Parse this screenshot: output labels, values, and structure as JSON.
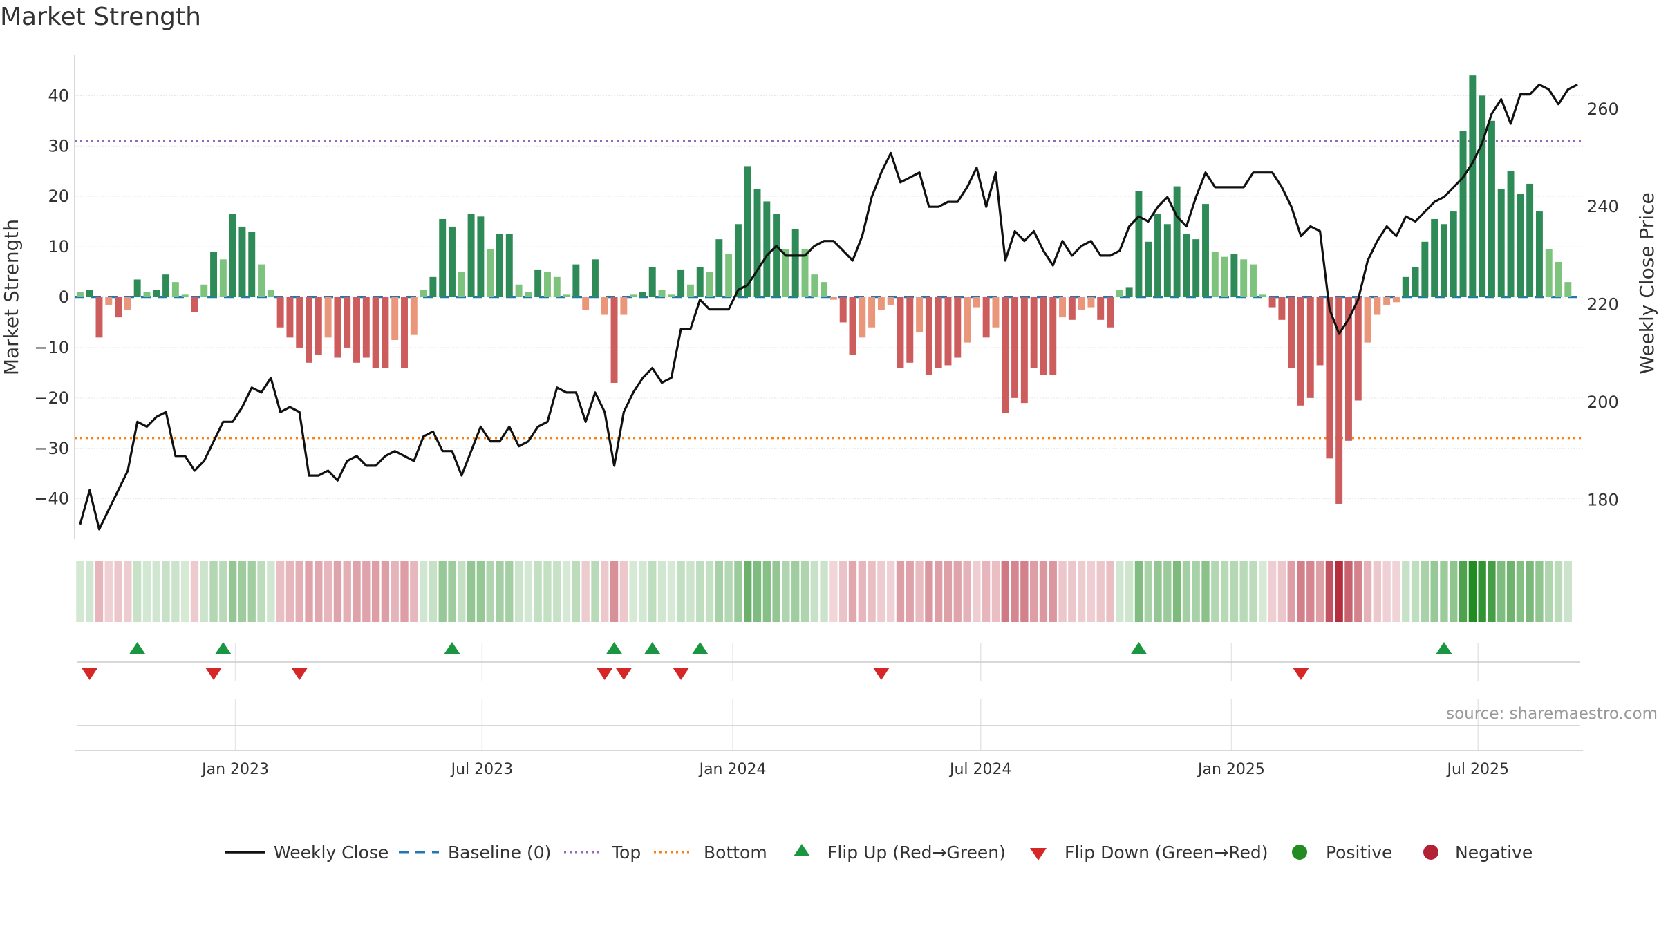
{
  "title": "Market Strength",
  "source": "source: sharemaestro.com",
  "colors": {
    "strong_green": "#2e8b57",
    "light_green": "#7dc27d",
    "strong_red": "#cd5c5c",
    "light_red": "#e9967a",
    "close_line": "#111111",
    "baseline": "#1f77b4",
    "top_line": "#9467bd",
    "bottom_line": "#ff7f0e",
    "flip_up": "#1a9641",
    "flip_down": "#d62728",
    "positive": "#228b22",
    "negative": "#b22234"
  },
  "chart_data": {
    "type": "bar",
    "title": "Market Strength",
    "ylabel": "Market Strength",
    "y2label": "Weekly Close Price",
    "ylim": [
      -48,
      48
    ],
    "y2lim": [
      172,
      271
    ],
    "yticks": [
      -40,
      -30,
      -20,
      -10,
      0,
      10,
      20,
      30,
      40
    ],
    "y2ticks": [
      180,
      200,
      220,
      240,
      260
    ],
    "x_start": "2022-09-09",
    "x_end": "2025-09-12",
    "xticks": [
      {
        "date": "2023-01-01",
        "label": "Jan 2023"
      },
      {
        "date": "2023-07-01",
        "label": "Jul 2023"
      },
      {
        "date": "2024-01-01",
        "label": "Jan 2024"
      },
      {
        "date": "2024-07-01",
        "label": "Jul 2024"
      },
      {
        "date": "2025-01-01",
        "label": "Jan 2025"
      },
      {
        "date": "2025-07-01",
        "label": "Jul 2025"
      }
    ],
    "top_line": 31,
    "bottom_line": -28,
    "baseline": 0,
    "weekly_dates": [
      "2022-09-09",
      "2022-09-16",
      "2022-09-23",
      "2022-09-30",
      "2022-10-07",
      "2022-10-14",
      "2022-10-21",
      "2022-10-28",
      "2022-11-04",
      "2022-11-11",
      "2022-11-18",
      "2022-11-25",
      "2022-12-02",
      "2022-12-09",
      "2022-12-16",
      "2022-12-23",
      "2022-12-30",
      "2023-01-06",
      "2023-01-13",
      "2023-01-20",
      "2023-01-27",
      "2023-02-03",
      "2023-02-10",
      "2023-02-17",
      "2023-02-24",
      "2023-03-03",
      "2023-03-10",
      "2023-03-17",
      "2023-03-24",
      "2023-03-31",
      "2023-04-07",
      "2023-04-14",
      "2023-04-21",
      "2023-04-28",
      "2023-05-05",
      "2023-05-12",
      "2023-05-19",
      "2023-05-26",
      "2023-06-02",
      "2023-06-09",
      "2023-06-16",
      "2023-06-23",
      "2023-06-30",
      "2023-07-07",
      "2023-07-14",
      "2023-07-21",
      "2023-07-28",
      "2023-08-04",
      "2023-08-11",
      "2023-08-18",
      "2023-08-25",
      "2023-09-01",
      "2023-09-08",
      "2023-09-15",
      "2023-09-22",
      "2023-09-29",
      "2023-10-06",
      "2023-10-13",
      "2023-10-20",
      "2023-10-27",
      "2023-11-03",
      "2023-11-10",
      "2023-11-17",
      "2023-11-24",
      "2023-12-01",
      "2023-12-08",
      "2023-12-15",
      "2023-12-22",
      "2023-12-29",
      "2024-01-05",
      "2024-01-12",
      "2024-01-19",
      "2024-01-26",
      "2024-02-02",
      "2024-02-09",
      "2024-02-16",
      "2024-02-23",
      "2024-03-01",
      "2024-03-08",
      "2024-03-15",
      "2024-03-22",
      "2024-03-29",
      "2024-04-05",
      "2024-04-12",
      "2024-04-19",
      "2024-04-26",
      "2024-05-03",
      "2024-05-10",
      "2024-05-17",
      "2024-05-24",
      "2024-05-31",
      "2024-06-07",
      "2024-06-14",
      "2024-06-21",
      "2024-06-28",
      "2024-07-05",
      "2024-07-12",
      "2024-07-19",
      "2024-07-26",
      "2024-08-02",
      "2024-08-09",
      "2024-08-16",
      "2024-08-23",
      "2024-08-30",
      "2024-09-06",
      "2024-09-13",
      "2024-09-20",
      "2024-09-27",
      "2024-10-04",
      "2024-10-11",
      "2024-10-18",
      "2024-10-25",
      "2024-11-01",
      "2024-11-08",
      "2024-11-15",
      "2024-11-22",
      "2024-11-29",
      "2024-12-06",
      "2024-12-13",
      "2024-12-20",
      "2024-12-27",
      "2025-01-03",
      "2025-01-10",
      "2025-01-17",
      "2025-01-24",
      "2025-01-31",
      "2025-02-07",
      "2025-02-14",
      "2025-02-21",
      "2025-02-28",
      "2025-03-07",
      "2025-03-14",
      "2025-03-21",
      "2025-03-28",
      "2025-04-04",
      "2025-04-11",
      "2025-04-18",
      "2025-04-25",
      "2025-05-02",
      "2025-05-09",
      "2025-05-16",
      "2025-05-23",
      "2025-05-30",
      "2025-06-06",
      "2025-06-13",
      "2025-06-20",
      "2025-06-27",
      "2025-07-04",
      "2025-07-11",
      "2025-07-18",
      "2025-07-25",
      "2025-08-01",
      "2025-08-08",
      "2025-08-15",
      "2025-08-22",
      "2025-08-29",
      "2025-09-05",
      "2025-09-12"
    ],
    "series": [
      {
        "name": "Market Strength",
        "values": [
          1,
          1.5,
          -8,
          -1.5,
          -4,
          -2.5,
          3.5,
          1,
          1.5,
          4.5,
          3,
          0.5,
          -3,
          2.5,
          9,
          7.5,
          16.5,
          14,
          13,
          6.5,
          1.5,
          -6,
          -8,
          -10,
          -13,
          -11.5,
          -8,
          -12,
          -10,
          -13,
          -12,
          -14,
          -14,
          -8.5,
          -14,
          -7.5,
          1.5,
          4,
          15.5,
          14,
          5,
          16.5,
          16,
          9.5,
          12.5,
          12.5,
          2.5,
          1,
          5.5,
          5,
          4,
          0.5,
          6.5,
          -2.5,
          7.5,
          -3.5,
          -17,
          -3.5,
          0.5,
          1,
          6,
          1.5,
          0.5,
          5.5,
          2.5,
          6,
          5,
          11.5,
          8.5,
          14.5,
          26,
          21.5,
          19,
          16.5,
          9.5,
          13.5,
          9.5,
          4.5,
          3,
          -0.5,
          -5,
          -11.5,
          -8,
          -6,
          -2.5,
          -1.5,
          -14,
          -13,
          -7,
          -15.5,
          -14,
          -13.5,
          -12,
          -9,
          -2,
          -8,
          -6,
          -23,
          -20,
          -21,
          -14,
          -15.5,
          -15.5,
          -4,
          -4.5,
          -2.5,
          -2,
          -4.5,
          -6,
          1.5,
          2,
          21,
          11,
          16.5,
          14.5,
          22,
          12.5,
          11.5,
          18.5,
          9,
          8,
          8.5,
          7.5,
          6.5,
          0.5,
          -2,
          -4.5,
          -14,
          -21.5,
          -20,
          -13.5,
          -32,
          -41,
          -28.5,
          -20.5,
          -9,
          -3.5,
          -1.5,
          -1,
          4,
          6,
          11,
          15.5,
          14.5,
          17,
          33,
          44,
          40,
          35,
          21.5,
          25,
          20.5,
          22.5,
          17,
          9.5,
          7,
          3
        ]
      },
      {
        "name": "Weekly Close",
        "axis": "right",
        "values": [
          175,
          182,
          174,
          178,
          182,
          186,
          196,
          195,
          197,
          198,
          189,
          189,
          186,
          188,
          192,
          196,
          196,
          199,
          203,
          202,
          205,
          198,
          199,
          198,
          185,
          185,
          186,
          184,
          188,
          189,
          187,
          187,
          189,
          190,
          189,
          188,
          193,
          194,
          190,
          190,
          185,
          190,
          195,
          192,
          192,
          195,
          191,
          192,
          195,
          196,
          203,
          202,
          202,
          196,
          202,
          198,
          187,
          198,
          202,
          205,
          207,
          204,
          205,
          215,
          215,
          221,
          219,
          219,
          219,
          223,
          224,
          227,
          230,
          232,
          230,
          230,
          230,
          232,
          233,
          233,
          231,
          229,
          234,
          242,
          247,
          251,
          245,
          246,
          247,
          240,
          240,
          241,
          241,
          244,
          248,
          240,
          247,
          229,
          235,
          233,
          235,
          231,
          228,
          233,
          230,
          232,
          233,
          230,
          230,
          231,
          236,
          238,
          237,
          240,
          242,
          238,
          236,
          242,
          247,
          244,
          244,
          244,
          244,
          247,
          247,
          247,
          244,
          240,
          234,
          236,
          235,
          219,
          214,
          217,
          221,
          229,
          233,
          236,
          234,
          238,
          237,
          239,
          241,
          242,
          244,
          246,
          249,
          253,
          259,
          262,
          257,
          263,
          263,
          265,
          264,
          261,
          264,
          265
        ]
      }
    ],
    "flip_up_dates": [
      "2022-10-21",
      "2022-12-23",
      "2023-06-09",
      "2023-10-06",
      "2023-11-03",
      "2023-12-08",
      "2024-10-25",
      "2025-06-06"
    ],
    "flip_down_dates": [
      "2022-09-16",
      "2022-12-16",
      "2023-02-17",
      "2023-09-29",
      "2023-10-13",
      "2023-11-24",
      "2024-04-19",
      "2025-02-21"
    ],
    "legend": {
      "placement": "bottom-center",
      "items": [
        {
          "label": "Weekly Close",
          "kind": "line-solid"
        },
        {
          "label": "Baseline (0)",
          "kind": "line-dashed"
        },
        {
          "label": "Top",
          "kind": "line-dotted"
        },
        {
          "label": "Bottom",
          "kind": "line-dotted"
        },
        {
          "label": "Flip Up (Red→Green)",
          "kind": "triangle-up"
        },
        {
          "label": "Flip Down (Green→Red)",
          "kind": "triangle-down"
        },
        {
          "label": "Positive",
          "kind": "circle"
        },
        {
          "label": "Negative",
          "kind": "circle"
        }
      ]
    }
  }
}
